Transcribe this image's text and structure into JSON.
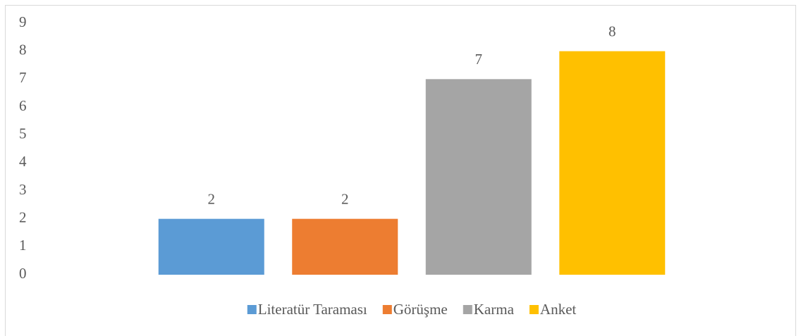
{
  "chart_data": {
    "type": "bar",
    "categories": [
      null
    ],
    "series": [
      {
        "name": "Literatür Taraması",
        "color": "#5b9bd5",
        "values": [
          2
        ]
      },
      {
        "name": "Görüşme",
        "color": "#ed7d31",
        "values": [
          2
        ]
      },
      {
        "name": "Karma",
        "color": "#a5a5a5",
        "values": [
          7
        ]
      },
      {
        "name": "Anket",
        "color": "#ffc000",
        "values": [
          8
        ]
      }
    ],
    "ylim": [
      0,
      9
    ],
    "yticks": [
      0,
      1,
      2,
      3,
      4,
      5,
      6,
      7,
      8,
      9
    ],
    "grid": false,
    "data_labels": true,
    "legend": "bottom"
  }
}
